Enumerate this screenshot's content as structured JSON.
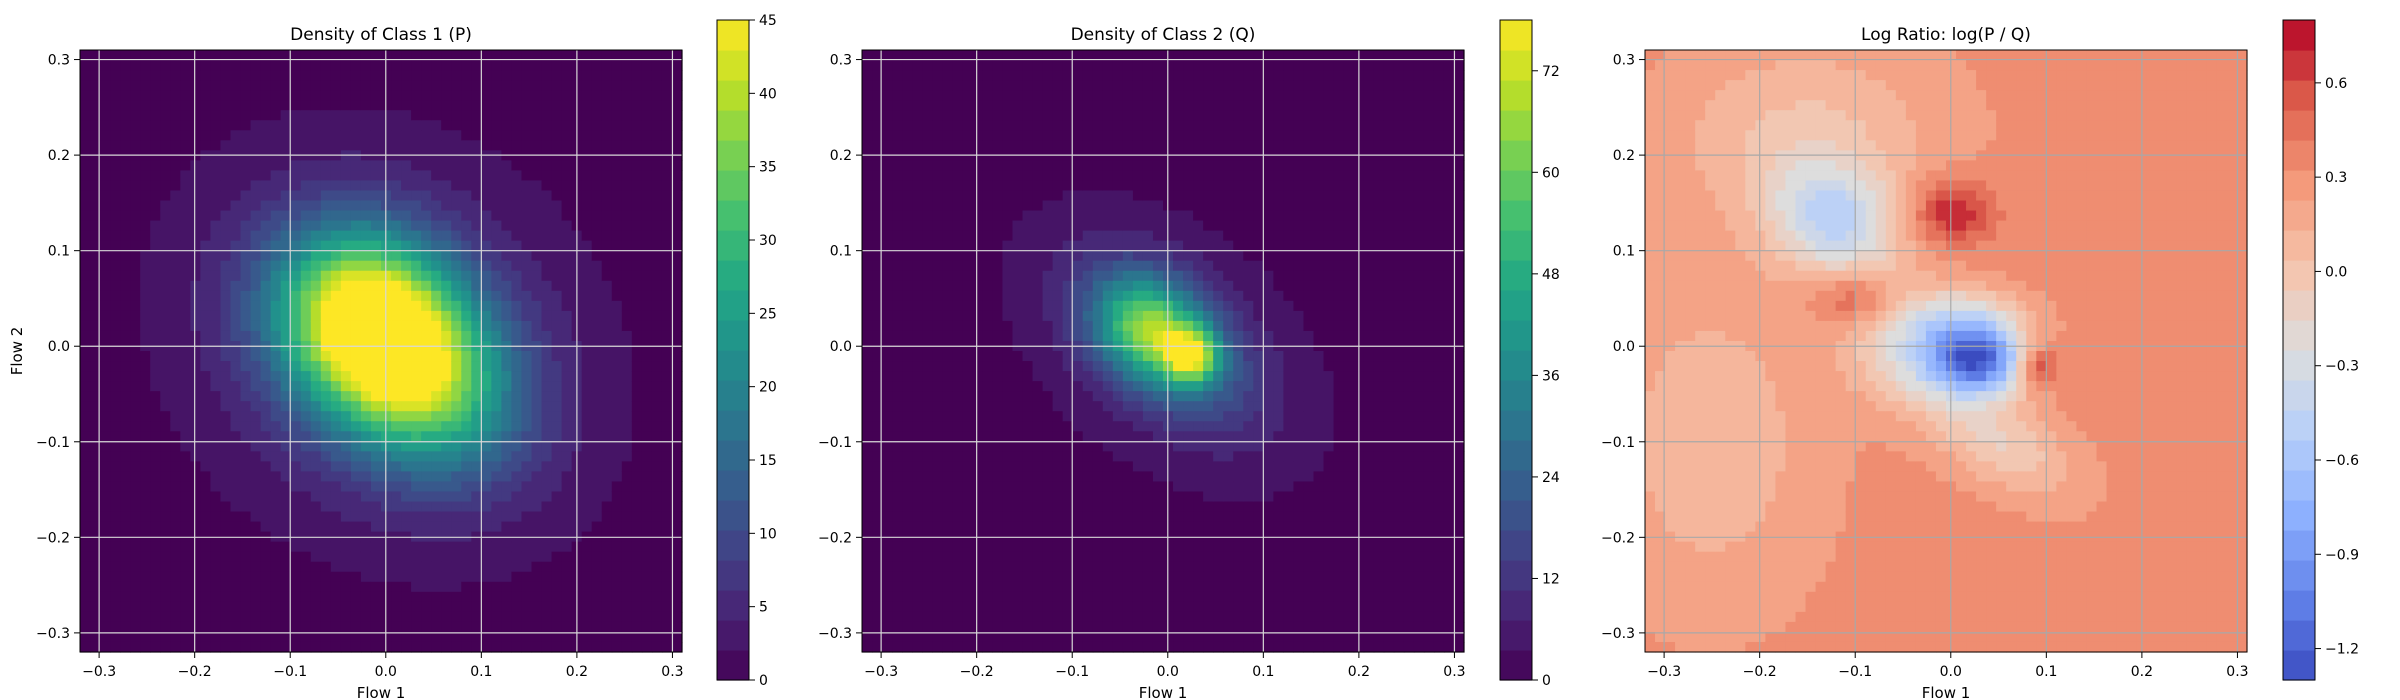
{
  "chart_data": [
    {
      "type": "heatmap",
      "title": "Density of Class 1 (P)",
      "xlabel": "Flow 1",
      "ylabel": "Flow 2",
      "xlim": [
        -0.32,
        0.31
      ],
      "ylim": [
        -0.32,
        0.31
      ],
      "x_ticks": [
        -0.3,
        -0.2,
        -0.1,
        0.0,
        0.1,
        0.2,
        0.3
      ],
      "y_ticks": [
        -0.3,
        -0.2,
        -0.1,
        0.0,
        0.1,
        0.2,
        0.3
      ],
      "grid": true,
      "colormap": "viridis",
      "colorbar": {
        "range": [
          0,
          45
        ],
        "ticks": [
          0,
          5,
          10,
          15,
          20,
          25,
          30,
          35,
          40,
          45
        ]
      },
      "blobs": [
        {
          "x": -0.02,
          "y": 0.03,
          "sx": 0.07,
          "sy": 0.06,
          "rot": -40,
          "peak": 33
        },
        {
          "x": 0.03,
          "y": -0.03,
          "sx": 0.08,
          "sy": 0.06,
          "rot": -40,
          "peak": 26
        },
        {
          "x": 0.0,
          "y": 0.0,
          "sx": 0.13,
          "sy": 0.11,
          "rot": -40,
          "peak": 11
        }
      ]
    },
    {
      "type": "heatmap",
      "title": "Density of Class 2 (Q)",
      "xlabel": "Flow 1",
      "ylabel": "",
      "xlim": [
        -0.32,
        0.31
      ],
      "ylim": [
        -0.32,
        0.31
      ],
      "x_ticks": [
        -0.3,
        -0.2,
        -0.1,
        0.0,
        0.1,
        0.2,
        0.3
      ],
      "y_ticks": [
        -0.3,
        -0.2,
        -0.1,
        0.0,
        0.1,
        0.2,
        0.3
      ],
      "grid": true,
      "colormap": "viridis",
      "colorbar": {
        "range": [
          0,
          78
        ],
        "ticks": [
          0,
          12,
          24,
          36,
          48,
          60,
          72
        ]
      },
      "blobs": [
        {
          "x": 0.025,
          "y": -0.01,
          "sx": 0.02,
          "sy": 0.02,
          "rot": 0,
          "peak": 45
        },
        {
          "x": -0.02,
          "y": 0.02,
          "sx": 0.04,
          "sy": 0.035,
          "rot": -40,
          "peak": 38
        },
        {
          "x": 0.0,
          "y": 0.0,
          "sx": 0.07,
          "sy": 0.04,
          "rot": -40,
          "peak": 22
        },
        {
          "x": 0.0,
          "y": 0.0,
          "sx": 0.11,
          "sy": 0.07,
          "rot": -40,
          "peak": 10
        }
      ]
    },
    {
      "type": "heatmap",
      "title": "Log Ratio: log(P / Q)",
      "xlabel": "Flow 1",
      "ylabel": "",
      "xlim": [
        -0.32,
        0.31
      ],
      "ylim": [
        -0.32,
        0.31
      ],
      "x_ticks": [
        -0.3,
        -0.2,
        -0.1,
        0.0,
        0.1,
        0.2,
        0.3
      ],
      "y_ticks": [
        -0.3,
        -0.2,
        -0.1,
        0.0,
        0.1,
        0.2,
        0.3
      ],
      "grid": true,
      "colormap": "coolwarm",
      "colorbar": {
        "range": [
          -1.3,
          0.8
        ],
        "ticks": [
          -1.2,
          -0.9,
          -0.6,
          -0.3,
          0.0,
          0.3,
          0.6
        ]
      },
      "base": 0.32,
      "blobs": [
        {
          "x": 0.03,
          "y": -0.015,
          "sx": 0.035,
          "sy": 0.025,
          "rot": 0,
          "peak": -1.3
        },
        {
          "x": -0.03,
          "y": 0.0,
          "sx": 0.05,
          "sy": 0.04,
          "rot": 0,
          "peak": -0.6
        },
        {
          "x": -0.12,
          "y": 0.13,
          "sx": 0.05,
          "sy": 0.04,
          "rot": -30,
          "peak": -0.7
        },
        {
          "x": -0.15,
          "y": 0.22,
          "sx": 0.1,
          "sy": 0.07,
          "rot": 0,
          "peak": -0.3
        },
        {
          "x": 0.0,
          "y": 0.14,
          "sx": 0.03,
          "sy": 0.025,
          "rot": 0,
          "peak": 0.45
        },
        {
          "x": -0.1,
          "y": 0.05,
          "sx": 0.03,
          "sy": 0.02,
          "rot": 0,
          "peak": 0.35
        },
        {
          "x": 0.09,
          "y": -0.02,
          "sx": 0.015,
          "sy": 0.015,
          "rot": 0,
          "peak": 0.5
        },
        {
          "x": 0.05,
          "y": -0.1,
          "sx": 0.06,
          "sy": 0.03,
          "rot": -30,
          "peak": -0.4
        },
        {
          "x": -0.25,
          "y": -0.1,
          "sx": 0.08,
          "sy": 0.12,
          "rot": 0,
          "peak": -0.25
        },
        {
          "x": 0.02,
          "y": 0.03,
          "sx": 0.04,
          "sy": 0.02,
          "rot": 0,
          "peak": -0.35
        }
      ]
    }
  ]
}
